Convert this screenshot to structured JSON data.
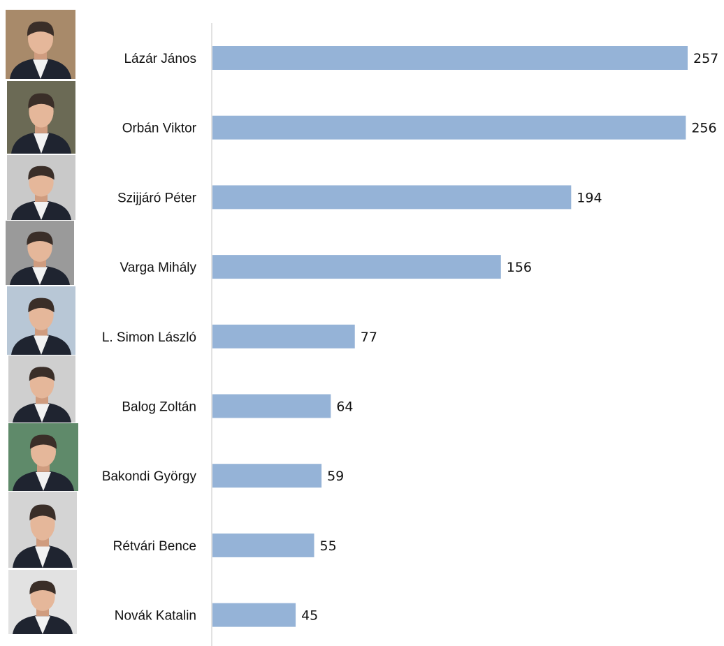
{
  "chart_data": {
    "type": "bar",
    "orientation": "horizontal",
    "categories": [
      "Lázár János",
      "Orbán Viktor",
      "Szijjáró Péter",
      "Varga Mihály",
      "L. Simon László",
      "Balog Zoltán",
      "Bakondi György",
      "Rétvári Bence",
      "Novák Katalin"
    ],
    "values": [
      257,
      256,
      194,
      156,
      77,
      64,
      59,
      55,
      45
    ],
    "value_labels": [
      "257",
      "256",
      "194",
      "156",
      "77",
      "64",
      "59",
      "55",
      "45"
    ],
    "title": "",
    "xlabel": "",
    "ylabel": "",
    "xlim": [
      0,
      257
    ],
    "grid": false,
    "legend": "none",
    "bar_color": "#95b3d7",
    "axis_color": "#d9d9d9",
    "photos": [
      "portrait-photo",
      "portrait-photo",
      "portrait-photo",
      "portrait-photo",
      "portrait-photo",
      "portrait-photo",
      "portrait-photo",
      "portrait-photo",
      "portrait-photo"
    ]
  }
}
